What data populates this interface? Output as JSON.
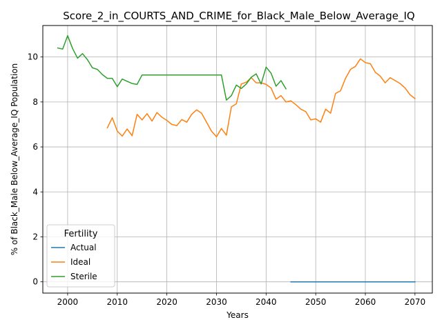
{
  "chart_data": {
    "type": "line",
    "title": "Score_2_in_COURTS_AND_CRIME_for_Black_Male_Below_Average_IQ",
    "xlabel": "Years",
    "ylabel": "% of Black_Male Below_Average_IQ Population",
    "xlim": [
      1995,
      2073.5
    ],
    "ylim": [
      -0.5,
      11.4
    ],
    "xticks": [
      2000,
      2010,
      2020,
      2030,
      2040,
      2050,
      2060,
      2070
    ],
    "yticks": [
      0,
      2,
      4,
      6,
      8,
      10
    ],
    "grid": true,
    "legend": {
      "title": "Fertility",
      "position": "lower-left"
    },
    "series": [
      {
        "name": "Actual",
        "color": "#1f77b4",
        "x": [
          2045,
          2050,
          2055,
          2060,
          2065,
          2070
        ],
        "y": [
          0,
          0,
          0,
          0,
          0,
          0
        ]
      },
      {
        "name": "Ideal",
        "color": "#ff7f0e",
        "x": [
          2008,
          2009,
          2010,
          2011,
          2012,
          2013,
          2014,
          2015,
          2016,
          2017,
          2018,
          2019,
          2020,
          2021,
          2022,
          2023,
          2024,
          2025,
          2026,
          2027,
          2028,
          2029,
          2030,
          2031,
          2032,
          2033,
          2034,
          2035,
          2036,
          2037,
          2038,
          2039,
          2040,
          2041,
          2042,
          2043,
          2044,
          2045,
          2046,
          2047,
          2048,
          2049,
          2050,
          2051,
          2052,
          2053,
          2054,
          2055,
          2056,
          2057,
          2058,
          2059,
          2060,
          2061,
          2062,
          2063,
          2064,
          2065,
          2066,
          2067,
          2068,
          2069,
          2070
        ],
        "y": [
          6.85,
          7.3,
          6.7,
          6.48,
          6.8,
          6.5,
          7.45,
          7.2,
          7.48,
          7.15,
          7.53,
          7.32,
          7.18,
          7.0,
          6.95,
          7.22,
          7.1,
          7.45,
          7.65,
          7.5,
          7.1,
          6.7,
          6.45,
          6.82,
          6.52,
          7.78,
          7.92,
          8.8,
          8.88,
          9.08,
          8.85,
          8.85,
          8.78,
          8.62,
          8.12,
          8.28,
          8.0,
          8.05,
          7.88,
          7.68,
          7.57,
          7.2,
          7.25,
          7.1,
          7.68,
          7.5,
          8.38,
          8.5,
          9.05,
          9.45,
          9.58,
          9.92,
          9.75,
          9.7,
          9.32,
          9.15,
          8.85,
          9.08,
          8.95,
          8.82,
          8.62,
          8.32,
          8.15
        ]
      },
      {
        "name": "Sterile",
        "color": "#2ca02c",
        "x": [
          1998,
          1999,
          2000,
          2001,
          2002,
          2003,
          2004,
          2005,
          2006,
          2007,
          2008,
          2009,
          2010,
          2011,
          2012,
          2013,
          2014,
          2015,
          2016,
          2017,
          2018,
          2019,
          2020,
          2021,
          2022,
          2023,
          2024,
          2025,
          2026,
          2027,
          2028,
          2029,
          2030,
          2031,
          2032,
          2033,
          2034,
          2035,
          2036,
          2037,
          2038,
          2039,
          2040,
          2041,
          2042,
          2043,
          2044
        ],
        "y": [
          10.4,
          10.35,
          10.95,
          10.38,
          9.95,
          10.15,
          9.88,
          9.52,
          9.45,
          9.22,
          9.05,
          9.05,
          8.68,
          9.02,
          8.92,
          8.82,
          8.78,
          9.2,
          9.2,
          9.2,
          9.2,
          9.2,
          9.2,
          9.2,
          9.2,
          9.2,
          9.2,
          9.2,
          9.2,
          9.2,
          9.2,
          9.2,
          9.2,
          9.2,
          8.08,
          8.28,
          8.75,
          8.6,
          8.8,
          9.1,
          9.25,
          8.8,
          9.55,
          9.28,
          8.7,
          8.95,
          8.58
        ]
      }
    ]
  }
}
